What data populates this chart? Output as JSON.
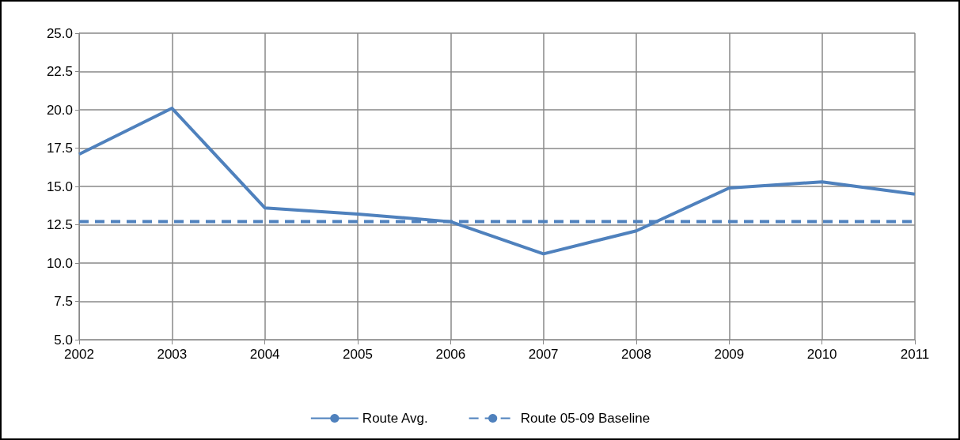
{
  "chart_data": {
    "type": "line",
    "categories": [
      "2002",
      "2003",
      "2004",
      "2005",
      "2006",
      "2007",
      "2008",
      "2009",
      "2010",
      "2011"
    ],
    "series": [
      {
        "name": "Route Avg.",
        "color": "#4f81bd",
        "line_style": "solid",
        "values": [
          17.1,
          20.1,
          13.6,
          13.2,
          12.7,
          10.6,
          12.1,
          14.9,
          15.3,
          14.5
        ]
      },
      {
        "name": "Route 05-09 Baseline",
        "color": "#4f81bd",
        "line_style": "dashed",
        "values": [
          12.7,
          12.7,
          12.7,
          12.7,
          12.7,
          12.7,
          12.7,
          12.7,
          12.7,
          12.7
        ]
      }
    ],
    "ylim": [
      5,
      25
    ],
    "yticks": [
      {
        "value": 5,
        "label": "5.0"
      },
      7.5,
      {
        "value": 10,
        "label": "10.0"
      },
      12.5,
      {
        "value": 15,
        "label": "15.0"
      },
      17.5,
      {
        "value": 20,
        "label": "20.0"
      },
      22.5,
      {
        "value": 25,
        "label": "25.0"
      }
    ],
    "grid": true,
    "legend": "bottom",
    "marker": "none"
  }
}
